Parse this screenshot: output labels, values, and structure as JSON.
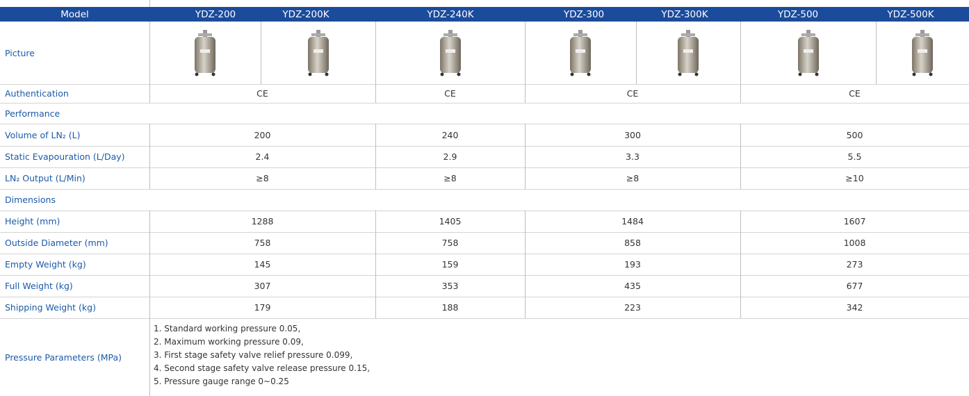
{
  "table": {
    "header": {
      "label": "Model",
      "models": [
        "YDZ-200",
        "YDZ-200K",
        "YDZ-240K",
        "YDZ-300",
        "YDZ-300K",
        "YDZ-500",
        "YDZ-500K"
      ]
    },
    "picture_label": "Picture",
    "rows": [
      {
        "label": "Authentication",
        "values": [
          "CE",
          "CE",
          "CE",
          "CE"
        ]
      },
      {
        "label": "Performance"
      },
      {
        "label": "Volume of LN₂ (L)",
        "values": [
          "200",
          "240",
          "300",
          "500"
        ]
      },
      {
        "label": "Static Evapouration (L/Day)",
        "values": [
          "2.4",
          "2.9",
          "3.3",
          "5.5"
        ]
      },
      {
        "label": "LN₂ Output (L/Min)",
        "values": [
          "≥8",
          "≥8",
          "≥8",
          "≥10"
        ]
      },
      {
        "label": "Dimensions"
      },
      {
        "label": "Height (mm)",
        "values": [
          "1288",
          "1405",
          "1484",
          "1607"
        ]
      },
      {
        "label": "Outside Diameter (mm)",
        "values": [
          "758",
          "758",
          "858",
          "1008"
        ]
      },
      {
        "label": "Empty Weight (kg)",
        "values": [
          "145",
          "159",
          "193",
          "273"
        ]
      },
      {
        "label": "Full Weight (kg)",
        "values": [
          "307",
          "353",
          "435",
          "677"
        ]
      },
      {
        "label": "Shipping Weight (kg)",
        "values": [
          "179",
          "188",
          "223",
          "342"
        ]
      }
    ],
    "pressure": {
      "label": "Pressure Parameters (MPa)",
      "lines": [
        "1. Standard working pressure 0.05,",
        "2. Maximum working pressure 0.09,",
        "3. First stage safety valve relief pressure 0.099,",
        "4. Second stage safety valve release pressure 0.15,",
        "5. Pressure gauge range 0~0.25"
      ]
    }
  }
}
